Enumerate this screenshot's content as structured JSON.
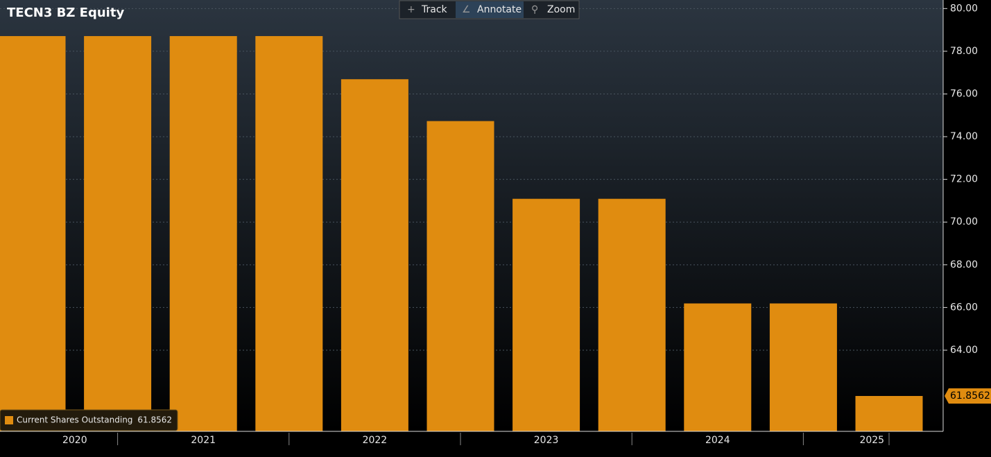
{
  "chart_data": {
    "type": "bar",
    "title": "TECN3 BZ Equity",
    "toolbar": [
      "Track",
      "Annotate",
      "Zoom"
    ],
    "categories": [
      null,
      null,
      null,
      null,
      null,
      null,
      null,
      null,
      null,
      null,
      null
    ],
    "x_labels": [
      "2020",
      "2021",
      "2022",
      "2023",
      "2024",
      "2025"
    ],
    "series": [
      {
        "name": "Current Shares Outstanding",
        "color": "#e08c10",
        "values": [
          78.71,
          78.71,
          78.71,
          78.71,
          76.69,
          74.73,
          71.09,
          71.09,
          66.19,
          66.19,
          61.8562
        ]
      }
    ],
    "ylim": [
      60.2,
      80.4
    ],
    "yticks": [
      {
        "value": 64,
        "label": "64.00"
      },
      {
        "value": 66,
        "label": "66.00"
      },
      {
        "value": 68,
        "label": "68.00"
      },
      {
        "value": 70,
        "label": "70.00"
      },
      {
        "value": 72,
        "label": "72.00"
      },
      {
        "value": 74,
        "label": "74.00"
      },
      {
        "value": 76,
        "label": "76.00"
      },
      {
        "value": 78,
        "label": "78.00"
      },
      {
        "value": 80,
        "label": "80.00"
      }
    ],
    "grid": true,
    "legend": "bottom-left"
  }
}
